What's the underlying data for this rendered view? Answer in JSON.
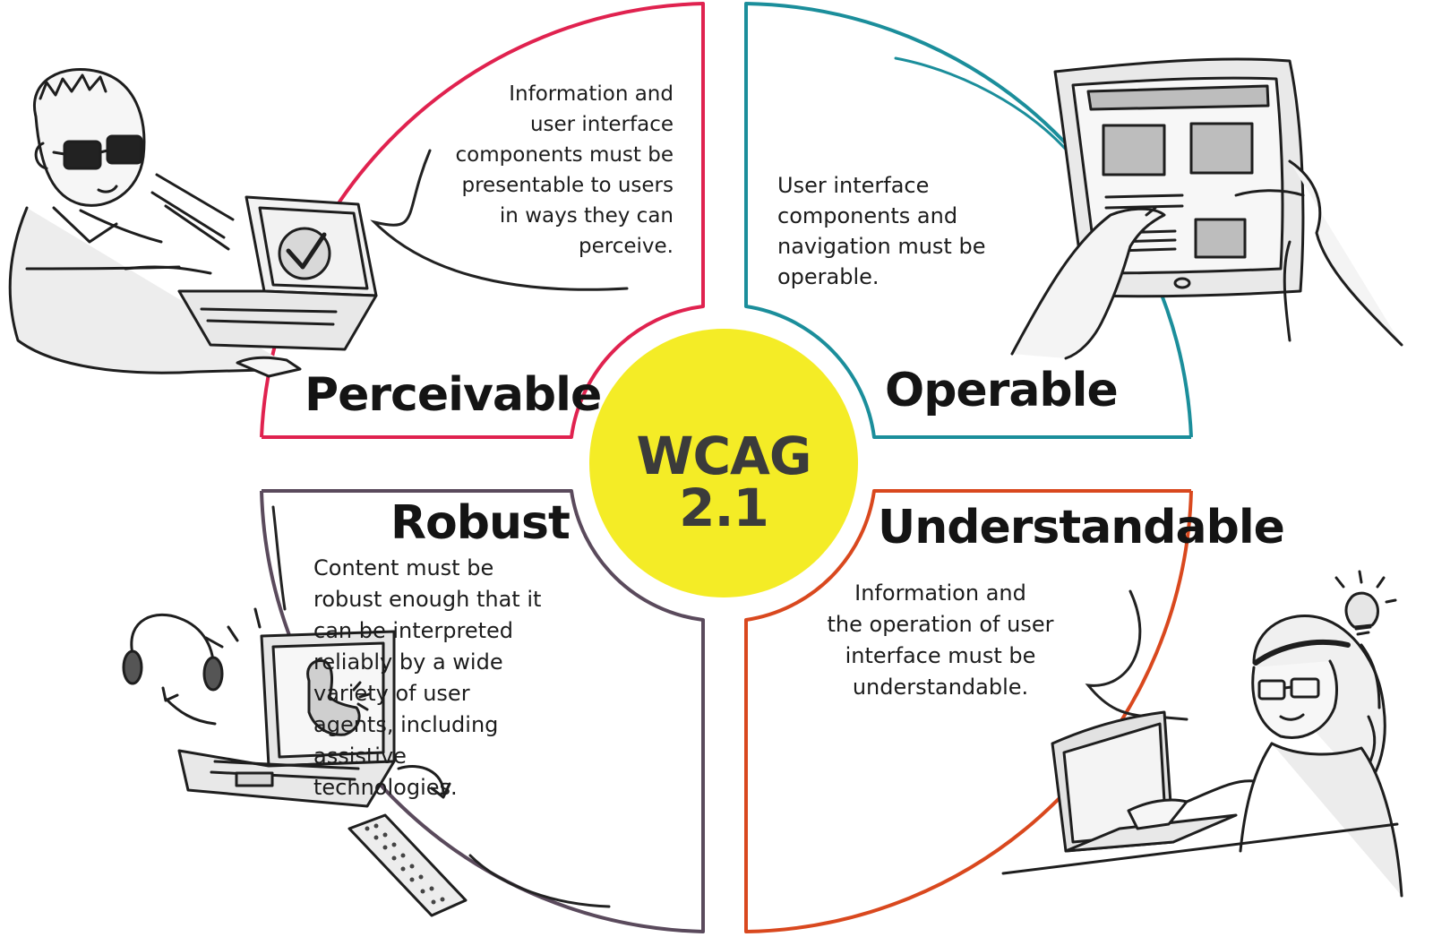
{
  "center": {
    "title": "WCAG 2.1",
    "color": "#f4ec26"
  },
  "quadrants": {
    "perceivable": {
      "heading": "Perceivable",
      "description": "Information and\nuser interface\ncomponents must be\npresentable to users\nin ways they can\nperceive.",
      "color": "#e0224f",
      "illustration": "person-with-sunglasses-at-laptop-icon"
    },
    "operable": {
      "heading": "Operable",
      "description": "User interface\ncomponents and\nnavigation must be\noperable.",
      "color": "#1b8e9b",
      "illustration": "hands-on-tablet-icon"
    },
    "robust": {
      "heading": "Robust",
      "description": "Content must be\nrobust enough that it\ncan be interpreted\nreliably by a wide\nvariety of user\nagents, including\nassistive\ntechnologies.",
      "color": "#5a4a5c",
      "illustration": "laptop-headphones-keyboard-icon"
    },
    "understandable": {
      "heading": "Understandable",
      "description": "Information and\nthe operation of user\ninterface must be\nunderstandable.",
      "color": "#d9481e",
      "illustration": "person-with-glasses-idea-icon"
    }
  }
}
